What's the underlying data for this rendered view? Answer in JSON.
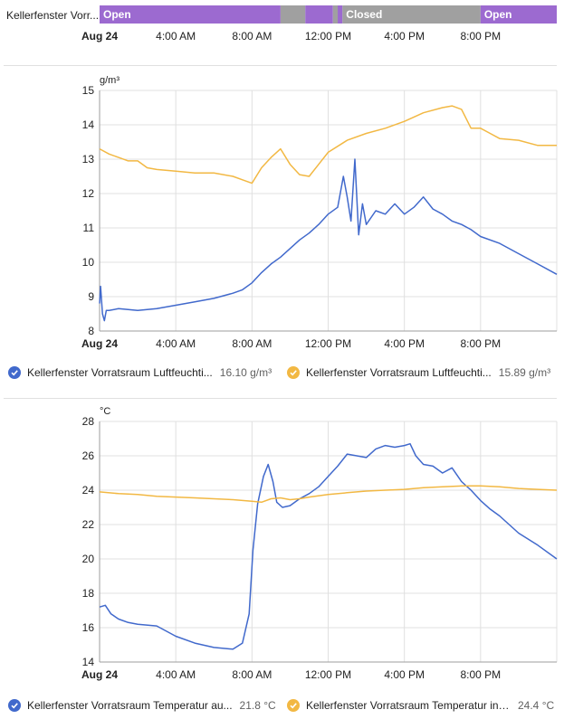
{
  "timeline": {
    "entity_label": "Kellerfenster Vorr...",
    "segments": [
      {
        "state": "on",
        "start": 0.0,
        "end": 9.5,
        "label": "Open"
      },
      {
        "state": "off",
        "start": 9.5,
        "end": 10.8,
        "label": ""
      },
      {
        "state": "on",
        "start": 10.8,
        "end": 12.25,
        "label": ""
      },
      {
        "state": "off",
        "start": 12.25,
        "end": 12.5,
        "label": ""
      },
      {
        "state": "on",
        "start": 12.5,
        "end": 12.75,
        "label": ""
      },
      {
        "state": "off",
        "start": 12.75,
        "end": 20.0,
        "label": "Closed"
      },
      {
        "state": "on",
        "start": 20.0,
        "end": 24.0,
        "label": "Open"
      }
    ],
    "x_ticks": [
      "Aug 24",
      "4:00 AM",
      "8:00 AM",
      "12:00 PM",
      "4:00 PM",
      "8:00 PM"
    ],
    "colors": {
      "on": "#9c6ad0",
      "off": "#a0a0a0"
    }
  },
  "chart_data": [
    {
      "type": "line",
      "unit": "g/m³",
      "xlim": [
        0,
        24
      ],
      "ylim": [
        8,
        15
      ],
      "y_ticks": [
        8,
        9,
        10,
        11,
        12,
        13,
        14,
        15
      ],
      "x_ticks": [
        "Aug 24",
        "4:00 AM",
        "8:00 AM",
        "12:00 PM",
        "4:00 PM",
        "8:00 PM"
      ],
      "grid": true,
      "legend_position": "bottom",
      "series": [
        {
          "name": "Kellerfenster Vorratsraum Luftfeuchti...",
          "current_value": "16.10 g/m³",
          "color": "#4169cc",
          "x": [
            0,
            0.05,
            0.15,
            0.25,
            0.35,
            0.5,
            1,
            2,
            3,
            4,
            5,
            6,
            7,
            7.5,
            8,
            8.5,
            9,
            9.5,
            10,
            10.5,
            11,
            11.5,
            12,
            12.5,
            12.8,
            13.0,
            13.2,
            13.4,
            13.6,
            13.8,
            14,
            14.5,
            15,
            15.5,
            16,
            16.5,
            17,
            17.5,
            18,
            18.5,
            19,
            19.5,
            20,
            21,
            22,
            23,
            24
          ],
          "y": [
            8.8,
            9.3,
            8.5,
            8.3,
            8.6,
            8.6,
            8.65,
            8.6,
            8.65,
            8.75,
            8.85,
            8.95,
            9.1,
            9.2,
            9.4,
            9.7,
            9.95,
            10.15,
            10.4,
            10.65,
            10.85,
            11.1,
            11.4,
            11.6,
            12.5,
            11.9,
            11.2,
            13.0,
            10.8,
            11.7,
            11.1,
            11.5,
            11.4,
            11.7,
            11.4,
            11.6,
            11.9,
            11.55,
            11.4,
            11.2,
            11.1,
            10.95,
            10.75,
            10.55,
            10.25,
            9.95,
            9.65
          ]
        },
        {
          "name": "Kellerfenster Vorratsraum Luftfeuchti...",
          "current_value": "15.89 g/m³",
          "color": "#f2b843",
          "x": [
            0,
            0.5,
            1,
            1.5,
            2,
            2.5,
            3,
            4,
            5,
            6,
            7,
            7.5,
            8,
            8.5,
            9,
            9.5,
            10,
            10.5,
            11,
            11.5,
            12,
            13,
            14,
            15,
            16,
            17,
            18,
            18.5,
            19,
            19.5,
            20,
            20.5,
            21,
            22,
            23,
            24
          ],
          "y": [
            13.3,
            13.15,
            13.05,
            12.95,
            12.95,
            12.75,
            12.7,
            12.65,
            12.6,
            12.6,
            12.5,
            12.4,
            12.3,
            12.75,
            13.05,
            13.3,
            12.85,
            12.55,
            12.5,
            12.85,
            13.2,
            13.55,
            13.75,
            13.9,
            14.1,
            14.35,
            14.5,
            14.55,
            14.45,
            13.9,
            13.9,
            13.75,
            13.6,
            13.55,
            13.4,
            13.4
          ]
        }
      ]
    },
    {
      "type": "line",
      "unit": "°C",
      "xlim": [
        0,
        24
      ],
      "ylim": [
        14,
        28
      ],
      "y_ticks": [
        14,
        16,
        18,
        20,
        22,
        24,
        26,
        28
      ],
      "x_ticks": [
        "Aug 24",
        "4:00 AM",
        "8:00 AM",
        "12:00 PM",
        "4:00 PM",
        "8:00 PM"
      ],
      "grid": true,
      "legend_position": "bottom",
      "series": [
        {
          "name": "Kellerfenster Vorratsraum Temperatur au...",
          "current_value": "21.8 °C",
          "color": "#4169cc",
          "x": [
            0,
            0.3,
            0.6,
            1,
            1.5,
            2,
            3,
            4,
            5,
            6,
            7,
            7.5,
            7.85,
            8.05,
            8.3,
            8.6,
            8.85,
            9.1,
            9.3,
            9.6,
            10,
            10.5,
            11,
            11.5,
            12,
            12.5,
            13,
            13.5,
            14,
            14.5,
            15,
            15.5,
            16,
            16.3,
            16.6,
            17,
            17.5,
            18,
            18.5,
            19,
            19.5,
            20,
            20.5,
            21,
            22,
            23,
            24
          ],
          "y": [
            17.2,
            17.3,
            16.8,
            16.5,
            16.3,
            16.2,
            16.1,
            15.5,
            15.1,
            14.85,
            14.75,
            15.1,
            16.8,
            20.5,
            23.2,
            24.8,
            25.5,
            24.5,
            23.3,
            23.0,
            23.1,
            23.5,
            23.8,
            24.2,
            24.8,
            25.4,
            26.1,
            26.0,
            25.9,
            26.4,
            26.6,
            26.5,
            26.6,
            26.7,
            26.0,
            25.5,
            25.4,
            25.0,
            25.3,
            24.5,
            24.0,
            23.4,
            22.9,
            22.5,
            21.5,
            20.8,
            20.0
          ]
        },
        {
          "name": "Kellerfenster Vorratsraum Temperatur inn...",
          "current_value": "24.4 °C",
          "color": "#f2b843",
          "x": [
            0,
            1,
            2,
            3,
            4,
            5,
            6,
            7,
            8,
            8.5,
            9,
            9.5,
            10,
            10.5,
            11,
            12,
            13,
            14,
            15,
            16,
            17,
            18,
            19,
            20,
            21,
            22,
            23,
            24
          ],
          "y": [
            23.9,
            23.8,
            23.75,
            23.65,
            23.6,
            23.55,
            23.5,
            23.45,
            23.35,
            23.3,
            23.5,
            23.55,
            23.45,
            23.5,
            23.6,
            23.75,
            23.85,
            23.95,
            24.0,
            24.05,
            24.15,
            24.2,
            24.25,
            24.25,
            24.2,
            24.1,
            24.05,
            24.0
          ]
        }
      ]
    }
  ]
}
